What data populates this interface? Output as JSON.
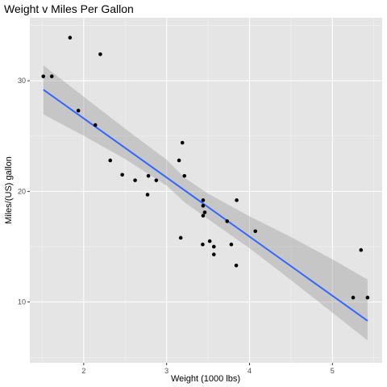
{
  "chart_data": {
    "type": "scatter",
    "title": "Weight v Miles Per Gallon",
    "xlabel": "Weight (1000 lbs)",
    "ylabel": "Miles/(US) gallon",
    "xlim": [
      1.35,
      5.6
    ],
    "ylim": [
      4.5,
      35.7
    ],
    "x_ticks": [
      2,
      3,
      4,
      5
    ],
    "y_ticks": [
      10,
      20,
      30
    ],
    "x_minor_ticks": [
      1.5,
      2.5,
      3.5,
      4.5,
      5.5
    ],
    "y_minor_ticks": [
      5,
      15,
      25,
      35
    ],
    "grid": true,
    "points": [
      {
        "x": 1.513,
        "y": 30.4
      },
      {
        "x": 1.615,
        "y": 30.4
      },
      {
        "x": 1.835,
        "y": 33.9
      },
      {
        "x": 1.935,
        "y": 27.3
      },
      {
        "x": 2.14,
        "y": 26.0
      },
      {
        "x": 2.2,
        "y": 32.4
      },
      {
        "x": 2.32,
        "y": 22.8
      },
      {
        "x": 2.465,
        "y": 21.5
      },
      {
        "x": 2.62,
        "y": 21.0
      },
      {
        "x": 2.77,
        "y": 19.7
      },
      {
        "x": 2.78,
        "y": 21.4
      },
      {
        "x": 2.875,
        "y": 21.0
      },
      {
        "x": 3.15,
        "y": 22.8
      },
      {
        "x": 3.17,
        "y": 15.8
      },
      {
        "x": 3.19,
        "y": 24.4
      },
      {
        "x": 3.215,
        "y": 21.4
      },
      {
        "x": 3.435,
        "y": 15.2
      },
      {
        "x": 3.44,
        "y": 18.7
      },
      {
        "x": 3.44,
        "y": 19.2
      },
      {
        "x": 3.44,
        "y": 17.8
      },
      {
        "x": 3.46,
        "y": 18.1
      },
      {
        "x": 3.52,
        "y": 15.5
      },
      {
        "x": 3.57,
        "y": 14.3
      },
      {
        "x": 3.57,
        "y": 15.0
      },
      {
        "x": 3.73,
        "y": 17.3
      },
      {
        "x": 3.78,
        "y": 15.2
      },
      {
        "x": 3.84,
        "y": 13.3
      },
      {
        "x": 3.845,
        "y": 19.2
      },
      {
        "x": 4.07,
        "y": 16.4
      },
      {
        "x": 5.25,
        "y": 10.4
      },
      {
        "x": 5.345,
        "y": 14.7
      },
      {
        "x": 5.424,
        "y": 10.4
      }
    ],
    "fit_line": {
      "type": "linear",
      "intercept": 37.285,
      "slope": -5.344,
      "x_range": [
        1.513,
        5.424
      ]
    },
    "confidence_band": {
      "x": [
        1.513,
        2.0,
        2.5,
        3.0,
        3.217,
        3.5,
        4.0,
        4.5,
        5.0,
        5.424
      ],
      "lower": [
        26.96,
        25.03,
        22.93,
        20.52,
        19.01,
        17.5,
        14.86,
        11.98,
        9.04,
        6.53
      ],
      "upper": [
        31.4,
        28.56,
        25.67,
        22.86,
        21.23,
        19.8,
        17.74,
        15.87,
        13.86,
        12.02
      ]
    },
    "colors": {
      "panel_background": "#e5e5e5",
      "grid_major": "#ffffff",
      "grid_minor": "#f2f2f2",
      "points": "#000000",
      "fit_line": "#3366ff",
      "confidence_band": "#999999"
    }
  }
}
